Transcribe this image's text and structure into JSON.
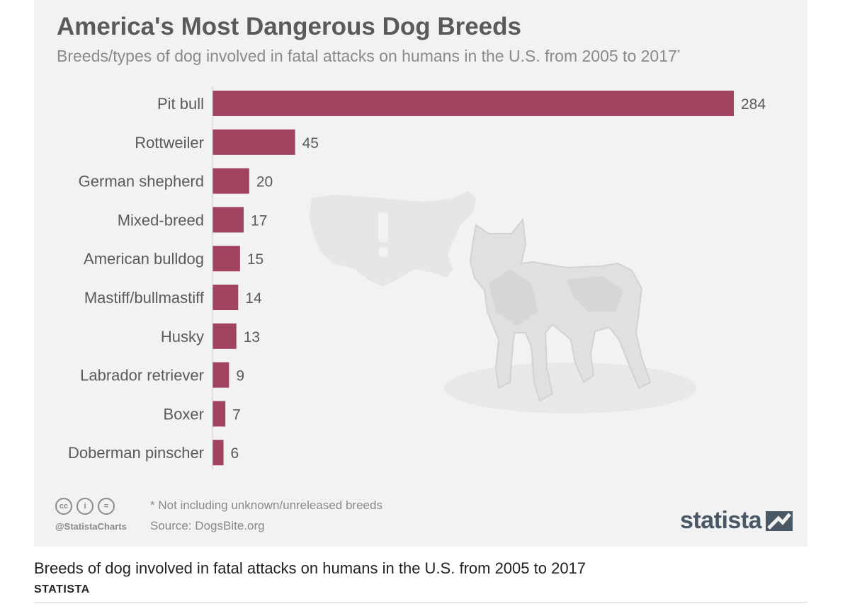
{
  "header": {
    "title": "America's Most Dangerous Dog Breeds",
    "subtitle": "Breeds/types of dog involved in fatal attacks on humans in the U.S. from 2005 to 2017",
    "subtitle_mark": "*"
  },
  "chart_data": {
    "type": "bar",
    "orientation": "horizontal",
    "title": "America's Most Dangerous Dog Breeds",
    "subtitle": "Breeds/types of dog involved in fatal attacks on humans in the U.S. from 2005 to 2017*",
    "categories": [
      "Pit bull",
      "Rottweiler",
      "German shepherd",
      "Mixed-breed",
      "American bulldog",
      "Mastiff/bullmastiff",
      "Husky",
      "Labrador retriever",
      "Boxer",
      "Doberman pinscher"
    ],
    "values": [
      284,
      45,
      20,
      17,
      15,
      14,
      13,
      9,
      7,
      6
    ],
    "xlabel": "",
    "ylabel": "",
    "xlim": [
      0,
      284
    ],
    "grid": false,
    "bar_color": "#a0435f",
    "data_labels": true
  },
  "footer": {
    "cc_icons": [
      "cc-icon",
      "by-icon",
      "nd-icon"
    ],
    "cc_labels": [
      "cc",
      "i",
      "="
    ],
    "handle": "@StatistaCharts",
    "footnote": "* Not including unknown/unreleased breeds",
    "source": "Source: DogsBite.org",
    "brand": "statista"
  },
  "caption": {
    "text": "Breeds of dog involved in fatal attacks on humans in the U.S. from 2005 to 2017",
    "publisher": "STATISTA"
  },
  "colors": {
    "accent": "#a0435f",
    "title": "#5a5a5a",
    "muted": "#8a8a8a",
    "background": "#f2f2f2",
    "brand": "#4a5866"
  }
}
